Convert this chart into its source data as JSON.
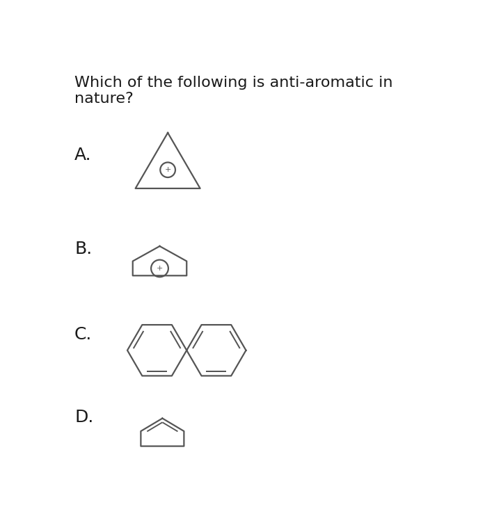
{
  "title": "Which of the following is anti-aromatic in\nnature?",
  "title_fontsize": 16,
  "bg_color": "#ffffff",
  "text_color": "#1a1a1a",
  "labels": [
    "A.",
    "B.",
    "C.",
    "D."
  ],
  "line_color": "#555555",
  "line_width": 1.6,
  "label_fontsize": 18
}
